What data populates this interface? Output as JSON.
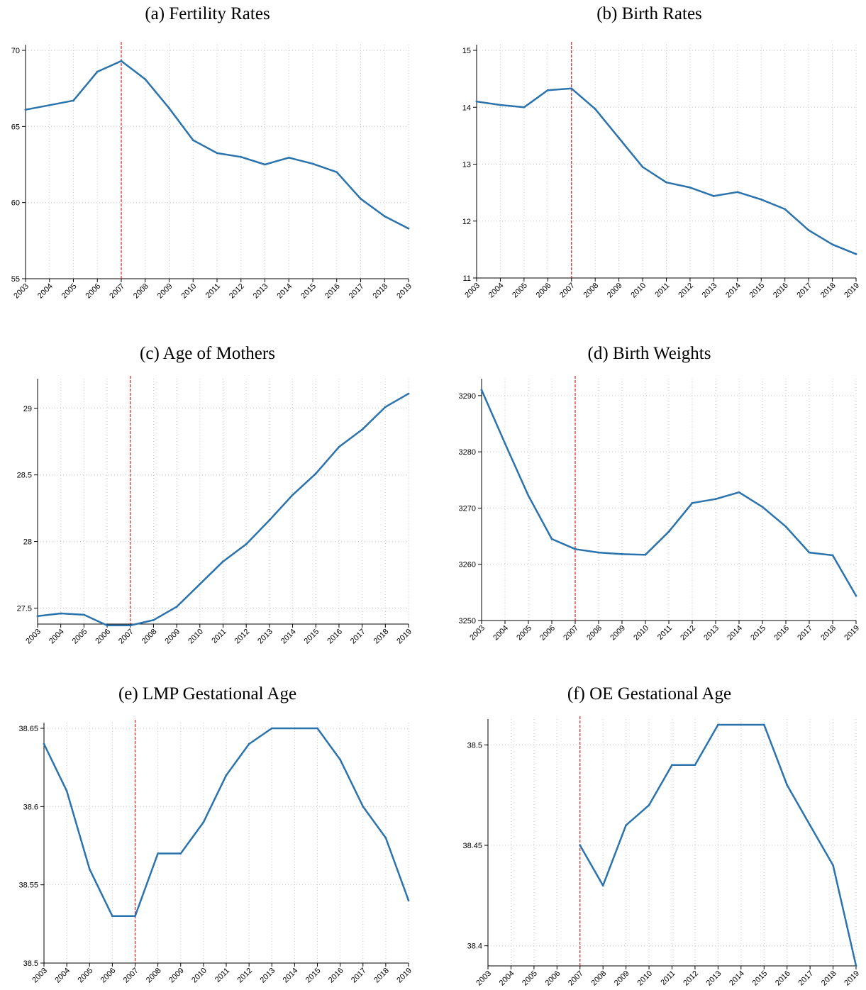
{
  "chart_data": [
    {
      "id": "a",
      "type": "line",
      "title": "(a) Fertility Rates",
      "x": [
        2003,
        2004,
        2005,
        2006,
        2007,
        2008,
        2009,
        2010,
        2011,
        2012,
        2013,
        2014,
        2015,
        2016,
        2017,
        2018,
        2019
      ],
      "xticks": [
        "2003",
        "2004",
        "2005",
        "2006",
        "2007",
        "2008",
        "2009",
        "2010",
        "2011",
        "2012",
        "2013",
        "2014",
        "2015",
        "2016",
        "2017",
        "2018",
        "2019"
      ],
      "series": [
        {
          "values": [
            66.1,
            66.4,
            66.7,
            68.6,
            69.3,
            68.1,
            66.2,
            64.1,
            63.25,
            63.0,
            62.5,
            62.95,
            62.55,
            62.0,
            60.25,
            59.1,
            58.3
          ]
        }
      ],
      "ylim": [
        55,
        70
      ],
      "yticks": [
        55,
        60,
        65,
        70
      ],
      "yticklabels": [
        "55",
        "60",
        "65",
        "70"
      ],
      "vline": 2007,
      "grid": true,
      "colors": {
        "line": "#2a73ad",
        "vline": "#e02020",
        "grid": "#c8c8c8"
      }
    },
    {
      "id": "b",
      "type": "line",
      "title": "(b) Birth Rates",
      "x": [
        2003,
        2004,
        2005,
        2006,
        2007,
        2008,
        2009,
        2010,
        2011,
        2012,
        2013,
        2014,
        2015,
        2016,
        2017,
        2018,
        2019
      ],
      "xticks": [
        "2003",
        "2004",
        "2005",
        "2006",
        "2007",
        "2008",
        "2009",
        "2010",
        "2011",
        "2012",
        "2013",
        "2014",
        "2015",
        "2016",
        "2017",
        "2018",
        "2019"
      ],
      "series": [
        {
          "values": [
            14.1,
            14.04,
            14.0,
            14.3,
            14.33,
            13.97,
            13.46,
            12.95,
            12.68,
            12.59,
            12.44,
            12.51,
            12.38,
            12.21,
            11.84,
            11.59,
            11.42
          ]
        }
      ],
      "ylim": [
        11,
        15
      ],
      "yticks": [
        11,
        12,
        13,
        14,
        15
      ],
      "yticklabels": [
        "11",
        "12",
        "13",
        "14",
        "15"
      ],
      "vline": 2007,
      "grid": true,
      "colors": {
        "line": "#2a73ad",
        "vline": "#e02020",
        "grid": "#c8c8c8"
      }
    },
    {
      "id": "c",
      "type": "line",
      "title": "(c) Age of Mothers",
      "x": [
        2003,
        2004,
        2005,
        2006,
        2007,
        2008,
        2009,
        2010,
        2011,
        2012,
        2013,
        2014,
        2015,
        2016,
        2017,
        2018,
        2019
      ],
      "xticks": [
        "2003",
        "2004",
        "2005",
        "2006",
        "2007",
        "2008",
        "2009",
        "2010",
        "2011",
        "2012",
        "2013",
        "2014",
        "2015",
        "2016",
        "2017",
        "2018",
        "2019"
      ],
      "series": [
        {
          "values": [
            27.44,
            27.46,
            27.45,
            27.37,
            27.37,
            27.41,
            27.51,
            27.68,
            27.85,
            27.98,
            28.16,
            28.35,
            28.51,
            28.71,
            28.84,
            29.01,
            29.11
          ]
        }
      ],
      "ylim": [
        27.38,
        29.18
      ],
      "yticks": [
        27.5,
        28,
        28.5,
        29
      ],
      "yticklabels": [
        "27.5",
        "28",
        "28.5",
        "29"
      ],
      "vline": 2007,
      "grid": true,
      "colors": {
        "line": "#2a73ad",
        "vline": "#e02020",
        "grid": "#c8c8c8"
      }
    },
    {
      "id": "d",
      "type": "line",
      "title": "(d) Birth Weights",
      "x": [
        2003,
        2004,
        2005,
        2006,
        2007,
        2008,
        2009,
        2010,
        2011,
        2012,
        2013,
        2014,
        2015,
        2016,
        2017,
        2018,
        2019
      ],
      "xticks": [
        "2003",
        "2004",
        "2005",
        "2006",
        "2007",
        "2008",
        "2009",
        "2010",
        "2011",
        "2012",
        "2013",
        "2014",
        "2015",
        "2016",
        "2017",
        "2018",
        "2019"
      ],
      "series": [
        {
          "values": [
            3291,
            3281.5,
            3272.2,
            3264.5,
            3262.7,
            3262.1,
            3261.8,
            3261.7,
            3265.8,
            3270.9,
            3271.6,
            3272.8,
            3270.2,
            3266.7,
            3262.1,
            3261.6,
            3254.4
          ]
        }
      ],
      "ylim": [
        3250,
        3292
      ],
      "yticks": [
        3250,
        3260,
        3270,
        3280,
        3290
      ],
      "yticklabels": [
        "3250",
        "3260",
        "3270",
        "3280",
        "3290"
      ],
      "vline": 2007,
      "grid": true,
      "colors": {
        "line": "#2a73ad",
        "vline": "#e02020",
        "grid": "#c8c8c8"
      }
    },
    {
      "id": "e",
      "type": "line",
      "title": "(e) LMP Gestational Age",
      "x": [
        2003,
        2004,
        2005,
        2006,
        2007,
        2008,
        2009,
        2010,
        2011,
        2012,
        2013,
        2014,
        2015,
        2016,
        2017,
        2018,
        2019
      ],
      "xticks": [
        "2003",
        "2004",
        "2005",
        "2006",
        "2007",
        "2008",
        "2009",
        "2010",
        "2011",
        "2012",
        "2013",
        "2014",
        "2015",
        "2016",
        "2017",
        "2018",
        "2019"
      ],
      "series": [
        {
          "values": [
            38.64,
            38.61,
            38.56,
            38.53,
            38.53,
            38.57,
            38.57,
            38.59,
            38.62,
            38.64,
            38.65,
            38.65,
            38.65,
            38.63,
            38.6,
            38.58,
            38.54
          ]
        }
      ],
      "ylim": [
        38.5,
        38.65
      ],
      "yticks": [
        38.5,
        38.55,
        38.6,
        38.65
      ],
      "yticklabels": [
        "38.5",
        "38.55",
        "38.6",
        "38.65"
      ],
      "vline": 2007,
      "grid": true,
      "colors": {
        "line": "#2a73ad",
        "vline": "#e02020",
        "grid": "#c8c8c8"
      }
    },
    {
      "id": "f",
      "type": "line",
      "title": "(f) OE Gestational Age",
      "x": [
        2003,
        2004,
        2005,
        2006,
        2007,
        2008,
        2009,
        2010,
        2011,
        2012,
        2013,
        2014,
        2015,
        2016,
        2017,
        2018,
        2019
      ],
      "xticks": [
        "2003",
        "2004",
        "2005",
        "2006",
        "2007",
        "2008",
        "2009",
        "2010",
        "2011",
        "2012",
        "2013",
        "2014",
        "2015",
        "2016",
        "2017",
        "2018",
        "2019"
      ],
      "series": [
        {
          "values": [
            null,
            null,
            null,
            null,
            38.45,
            38.43,
            38.46,
            38.47,
            38.49,
            38.49,
            38.51,
            38.51,
            38.51,
            38.48,
            38.46,
            38.44,
            38.39
          ]
        }
      ],
      "ylim": [
        38.39,
        38.51
      ],
      "yticks": [
        38.4,
        38.45,
        38.5
      ],
      "yticklabels": [
        "38.4",
        "38.45",
        "38.5"
      ],
      "vline": 2007,
      "grid": true,
      "colors": {
        "line": "#2a73ad",
        "vline": "#e02020",
        "grid": "#c8c8c8"
      }
    }
  ]
}
